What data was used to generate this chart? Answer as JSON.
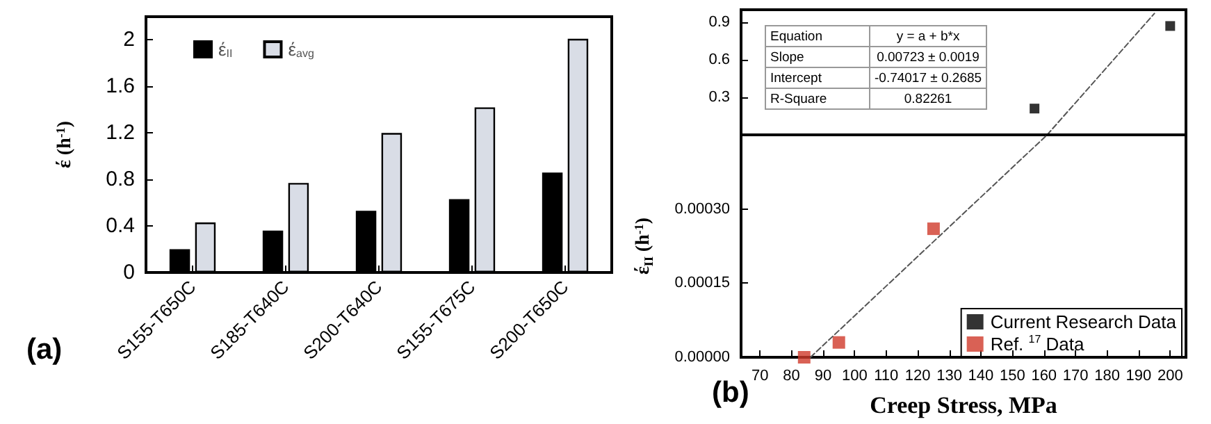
{
  "chart_data": [
    {
      "type": "bar",
      "title": "(a)",
      "ylabel": "έ (h$^{-1}$)",
      "categories": [
        "S155-T650C",
        "S185-T640C",
        "S200-T640C",
        "S155-T675C",
        "S200-T650C"
      ],
      "series": [
        {
          "name": "έ$_{II}$",
          "color": "#000000",
          "values": [
            0.2,
            0.36,
            0.53,
            0.63,
            0.86
          ]
        },
        {
          "name": "έ$_{avg}$",
          "color": "#d9dde6",
          "values": [
            0.43,
            0.77,
            1.2,
            1.42,
            2.01
          ]
        }
      ],
      "ylim": [
        0,
        2.2
      ],
      "yticks": [
        0,
        0.4,
        0.8,
        1.2,
        1.6,
        2
      ],
      "legend": "top left",
      "grid": false
    },
    {
      "type": "scatter",
      "annotations": [
        "Equation",
        "y = a + b*x",
        "Slope",
        "0.00723 ± 0.0019",
        "Intercept",
        "-0.74017 ± 0.2685",
        "R-Square",
        "0.82261"
      ],
      "series": [
        {
          "color": "#000000",
          "x": [
            157,
            200
          ],
          "values": [
            0.21,
            0.87
          ]
        },
        {
          "type": "line",
          "x": [
            161,
            195
          ],
          "color": "#555555",
          "values": [
            0,
            0.97
          ],
          "line_style": "dashed",
          "marker": "none"
        }
      ],
      "xlim": [
        64,
        205
      ],
      "ylim": [
        0,
        1
      ],
      "yticks": [
        0.3,
        0.6,
        0.9
      ],
      "tick_labels": "y",
      "marker": "square",
      "grid": false
    },
    {
      "type": "scatter",
      "title": "(b)",
      "xlabel": "Creep Stress, MPa",
      "ylabel": "έ$_{II}$ (h$^{-1}$)",
      "series": [
        {
          "name": "Current Research Data",
          "color": "#000000"
        },
        {
          "name": "Ref. $^{17}$ Data",
          "color": "#d0392b",
          "x": [
            84,
            95,
            125
          ],
          "values": [
            0,
            3e-05,
            0.00026
          ]
        },
        {
          "type": "line",
          "x": [
            86,
            161
          ],
          "color": "#555555",
          "values": [
            0,
            0.00045
          ],
          "line_style": "dashed",
          "marker": "none"
        }
      ],
      "xlim": [
        64,
        205
      ],
      "xticks": [
        70,
        80,
        90,
        100,
        110,
        120,
        130,
        140,
        150,
        160,
        170,
        180,
        190,
        200
      ],
      "ylim": [
        0,
        0.00045
      ],
      "yticks": [
        {
          "value": 0,
          "label": "0.00000"
        },
        {
          "value": 0.00015,
          "label": "0.00015"
        },
        {
          "value": 0.0003,
          "label": "0.00030"
        }
      ],
      "legend": "bottom right",
      "marker": "square",
      "grid": false
    }
  ]
}
